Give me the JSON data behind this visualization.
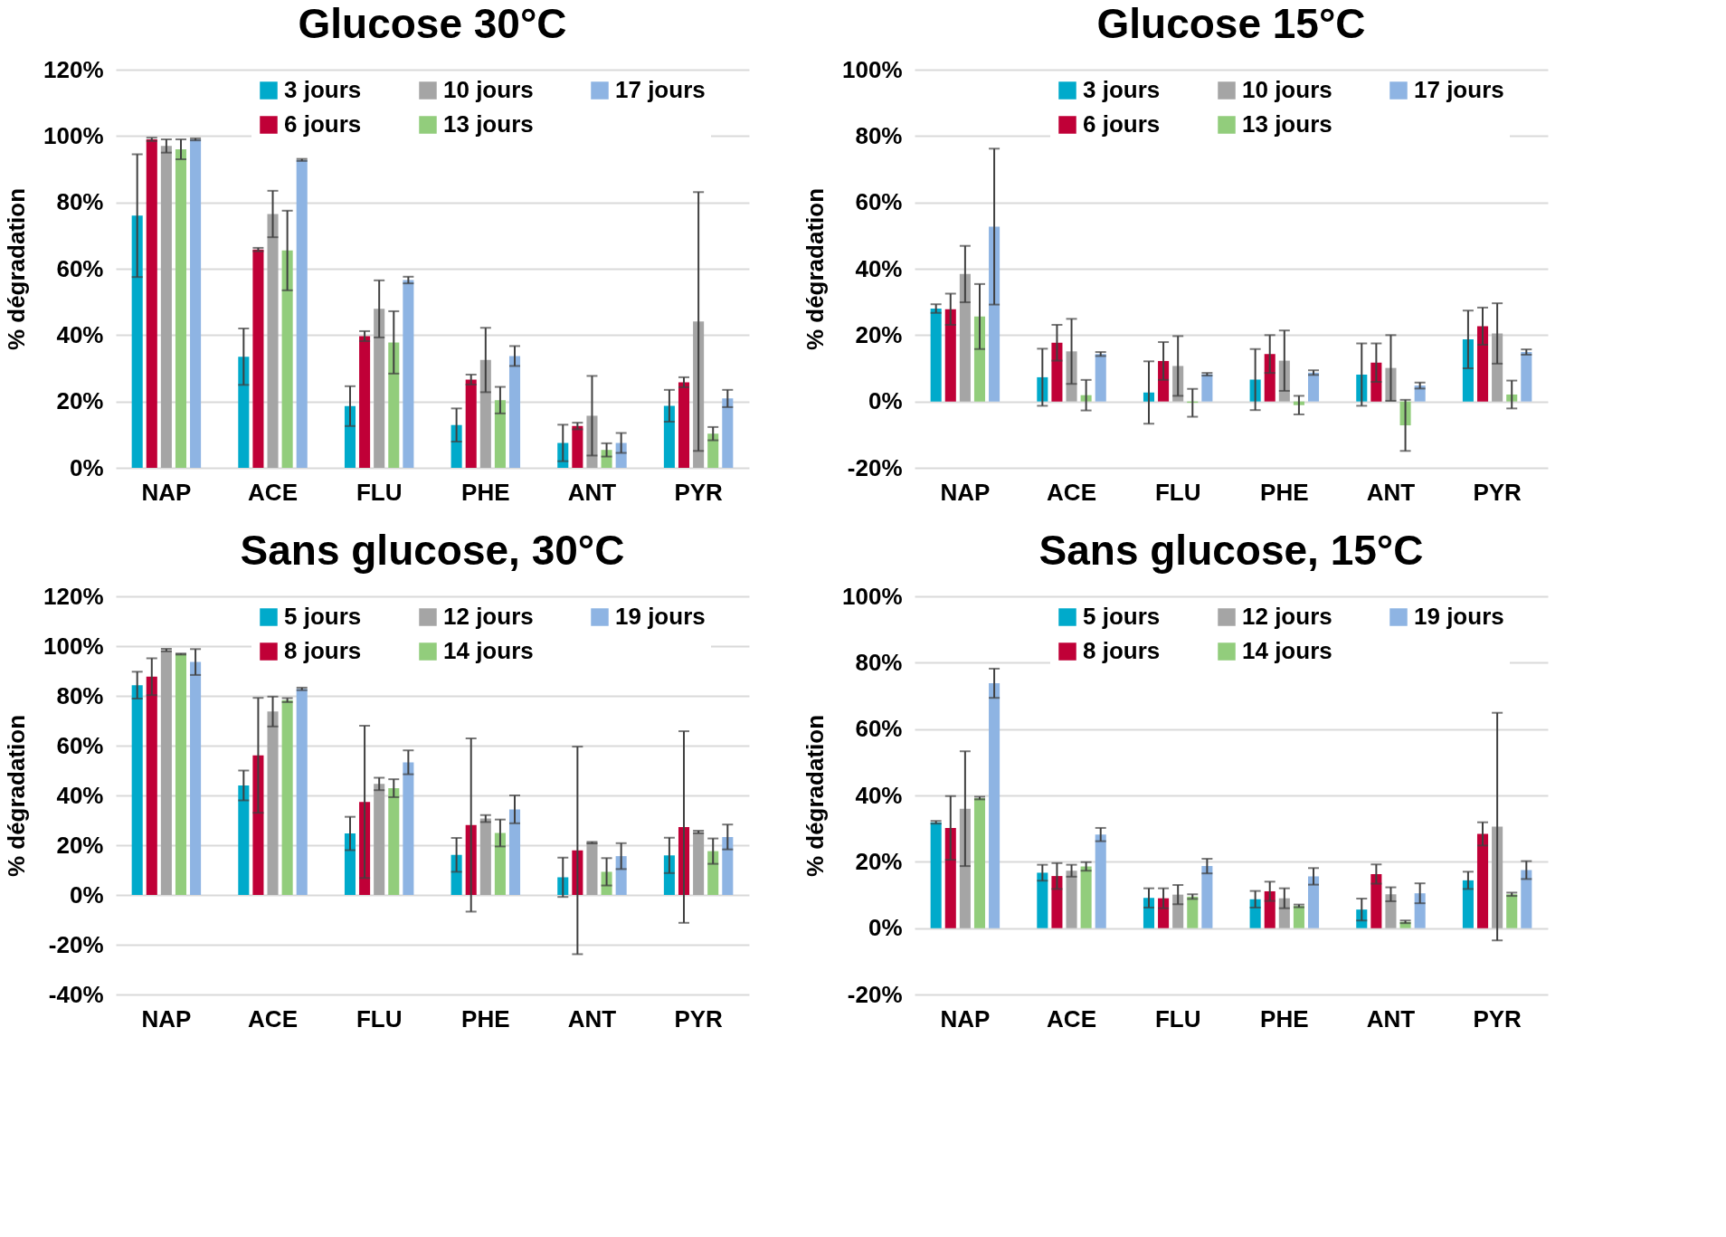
{
  "chart_data": [
    {
      "type": "bar",
      "title": "Glucose 30°C",
      "ylabel": "% dégradation",
      "categories": [
        "NAP",
        "ACE",
        "FLU",
        "PHE",
        "ANT",
        "PYR"
      ],
      "ylim": [
        0,
        120
      ],
      "yticks": [
        {
          "value": 0,
          "label": "0%"
        },
        {
          "value": 20,
          "label": "20%"
        },
        {
          "value": 40,
          "label": "40%"
        },
        {
          "value": 60,
          "label": "60%"
        },
        {
          "value": 80,
          "label": "80%"
        },
        {
          "value": 100,
          "label": "100%"
        },
        {
          "value": 120,
          "label": "120%"
        }
      ],
      "grid": "y",
      "legend": "top",
      "series": [
        {
          "name": "3 jours",
          "color": "#00aacb",
          "values": [
            76,
            33.5,
            18.6,
            12.9,
            7.5,
            18.7
          ],
          "errors": [
            18.5,
            8.5,
            6,
            5,
            5.5,
            4.8
          ]
        },
        {
          "name": "6 jours",
          "color": "#c00037",
          "values": [
            99,
            65.8,
            39.7,
            26.6,
            12.6,
            25.8
          ],
          "errors": [
            0.5,
            0.5,
            1.5,
            1.5,
            1,
            1.5
          ]
        },
        {
          "name": "10 jours",
          "color": "#a5a5a5",
          "values": [
            97,
            76.5,
            47.9,
            32.5,
            15.7,
            44.1
          ],
          "errors": [
            2,
            7,
            8.6,
            9.7,
            12,
            39
          ]
        },
        {
          "name": "13 jours",
          "color": "#92cd7c",
          "values": [
            96,
            65.5,
            37.8,
            20.4,
            5.4,
            10.3
          ],
          "errors": [
            3,
            12,
            9.4,
            4,
            2,
            2
          ]
        },
        {
          "name": "17 jours",
          "color": "#8eb4e3",
          "values": [
            99,
            92.8,
            56.6,
            33.7,
            7.5,
            20.9
          ],
          "errors": [
            0.3,
            0.3,
            1,
            3,
            3,
            2.6
          ]
        }
      ]
    },
    {
      "type": "bar",
      "title": "Glucose 15°C",
      "ylabel": "% dégradation",
      "categories": [
        "NAP",
        "ACE",
        "FLU",
        "PHE",
        "ANT",
        "PYR"
      ],
      "ylim": [
        -20,
        100
      ],
      "yticks": [
        {
          "value": -20,
          "label": "-20%"
        },
        {
          "value": 0,
          "label": "0%"
        },
        {
          "value": 20,
          "label": "20%"
        },
        {
          "value": 40,
          "label": "40%"
        },
        {
          "value": 60,
          "label": "60%"
        },
        {
          "value": 80,
          "label": "80%"
        },
        {
          "value": 100,
          "label": "100%"
        }
      ],
      "grid": "y",
      "legend": "top",
      "series": [
        {
          "name": "3 jours",
          "color": "#00aacb",
          "values": [
            28,
            7.3,
            2.7,
            6.6,
            8.1,
            18.7
          ],
          "errors": [
            1.3,
            8.6,
            9.4,
            9.2,
            9.4,
            8.7
          ]
        },
        {
          "name": "6 jours",
          "color": "#c00037",
          "values": [
            27.8,
            17.7,
            12.2,
            14.3,
            11.7,
            22.7
          ],
          "errors": [
            4.7,
            5.4,
            5.7,
            5.7,
            5.8,
            5.6
          ]
        },
        {
          "name": "10 jours",
          "color": "#a5a5a5",
          "values": [
            38.4,
            15.1,
            10.7,
            12.3,
            10.1,
            20.5
          ],
          "errors": [
            8.5,
            9.8,
            9,
            9.1,
            9.9,
            9.1
          ]
        },
        {
          "name": "13 jours",
          "color": "#92cd7c",
          "values": [
            25.6,
            1.9,
            -0.4,
            -1.1,
            -7.2,
            2.1
          ],
          "errors": [
            9.8,
            4.6,
            4.2,
            2.8,
            7.7,
            4.2
          ]
        },
        {
          "name": "17 jours",
          "color": "#8eb4e3",
          "values": [
            52.7,
            14.3,
            8.2,
            8.7,
            4.8,
            14.9
          ],
          "errors": [
            23.5,
            0.6,
            0.4,
            0.7,
            0.9,
            0.8
          ]
        }
      ]
    },
    {
      "type": "bar",
      "title": "Sans glucose, 30°C",
      "ylabel": "% dégradation",
      "categories": [
        "NAP",
        "ACE",
        "FLU",
        "PHE",
        "ANT",
        "PYR"
      ],
      "ylim": [
        -40,
        120
      ],
      "yticks": [
        {
          "value": -40,
          "label": "-40%"
        },
        {
          "value": -20,
          "label": "-20%"
        },
        {
          "value": 0,
          "label": "0%"
        },
        {
          "value": 20,
          "label": "20%"
        },
        {
          "value": 40,
          "label": "40%"
        },
        {
          "value": 60,
          "label": "60%"
        },
        {
          "value": 80,
          "label": "80%"
        },
        {
          "value": 100,
          "label": "100%"
        },
        {
          "value": 120,
          "label": "120%"
        }
      ],
      "grid": "y",
      "legend": "top",
      "series": [
        {
          "name": "5 jours",
          "color": "#00aacb",
          "values": [
            84.3,
            44,
            24.7,
            16.1,
            7.1,
            15.9
          ],
          "errors": [
            5.4,
            6,
            6.7,
            6.8,
            7.9,
            7.1
          ]
        },
        {
          "name": "8 jours",
          "color": "#c00037",
          "values": [
            87.7,
            56.1,
            37.4,
            28.1,
            17.9,
            27.3
          ],
          "errors": [
            7.4,
            23.1,
            30.6,
            34.8,
            41.7,
            38.5
          ]
        },
        {
          "name": "12 jours",
          "color": "#a5a5a5",
          "values": [
            98.4,
            73.7,
            44.6,
            30.7,
            21,
            25.3
          ],
          "errors": [
            0.5,
            6,
            2.5,
            1.4,
            0.3,
            0.5
          ]
        },
        {
          "name": "14 jours",
          "color": "#92cd7c",
          "values": [
            96.8,
            78.3,
            42.9,
            24.9,
            9.3,
            17.6
          ],
          "errors": [
            0.2,
            0.8,
            3.6,
            5.4,
            5.5,
            5.1
          ]
        },
        {
          "name": "19 jours",
          "color": "#8eb4e3",
          "values": [
            93.6,
            82.8,
            53.3,
            34.4,
            15.6,
            23.3
          ],
          "errors": [
            5.2,
            0.5,
            4.8,
            5.6,
            5.2,
            5
          ]
        }
      ]
    },
    {
      "type": "bar",
      "title": "Sans glucose, 15°C",
      "ylabel": "% dégradation",
      "categories": [
        "NAP",
        "ACE",
        "FLU",
        "PHE",
        "ANT",
        "PYR"
      ],
      "ylim": [
        -20,
        100
      ],
      "yticks": [
        {
          "value": -20,
          "label": "-20%"
        },
        {
          "value": 0,
          "label": "0%"
        },
        {
          "value": 20,
          "label": "20%"
        },
        {
          "value": 40,
          "label": "40%"
        },
        {
          "value": 60,
          "label": "60%"
        },
        {
          "value": 80,
          "label": "80%"
        },
        {
          "value": 100,
          "label": "100%"
        }
      ],
      "grid": "y",
      "legend": "top",
      "series": [
        {
          "name": "5 jours",
          "color": "#00aacb",
          "values": [
            31.9,
            16.7,
            9.1,
            8.7,
            5.6,
            14.4
          ],
          "errors": [
            0.4,
            2.4,
            2.9,
            2.5,
            3.3,
            2.6
          ]
        },
        {
          "name": "8 jours",
          "color": "#c00037",
          "values": [
            30.2,
            15.7,
            9,
            11.1,
            16.3,
            28.4
          ],
          "errors": [
            9.6,
            3.9,
            3,
            2.9,
            2.9,
            3.5
          ]
        },
        {
          "name": "12 jours",
          "color": "#a5a5a5",
          "values": [
            36,
            17.3,
            10.1,
            9,
            10.2,
            30.6
          ],
          "errors": [
            17.3,
            1.8,
            2.9,
            3,
            2.1,
            34.3
          ]
        },
        {
          "name": "14 jours",
          "color": "#92cd7c",
          "values": [
            39.2,
            18.6,
            9.5,
            6.7,
            1.9,
            10.2
          ],
          "errors": [
            0.4,
            1.3,
            0.7,
            0.4,
            0.4,
            0.5
          ]
        },
        {
          "name": "19 jours",
          "color": "#8eb4e3",
          "values": [
            73.8,
            28.2,
            18.7,
            15.6,
            10.5,
            17.5
          ],
          "errors": [
            4.4,
            2,
            2.2,
            2.5,
            3,
            2.7
          ]
        }
      ]
    }
  ]
}
